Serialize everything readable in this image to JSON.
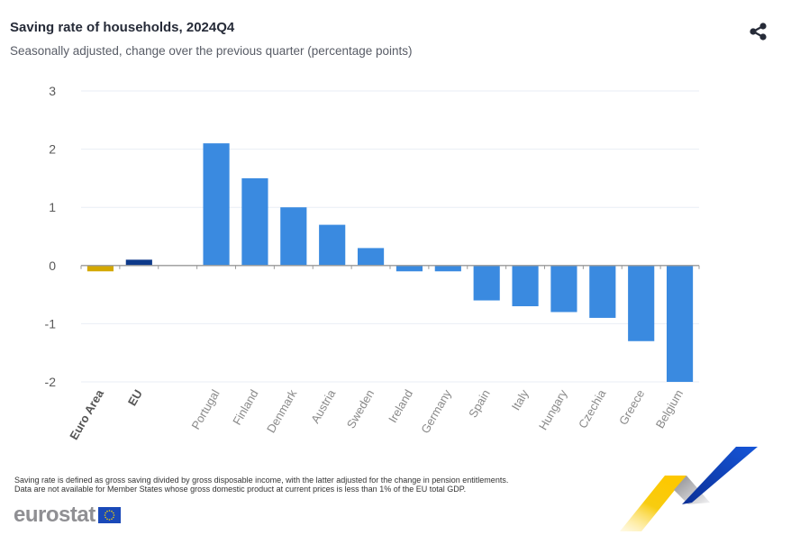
{
  "header": {
    "title": "Saving rate of households, 2024Q4",
    "subtitle": "Seasonally adjusted, change over the previous quarter (percentage points)",
    "share_icon": "share-icon"
  },
  "chart_data": {
    "type": "bar",
    "title": "Saving rate of households, 2024Q4",
    "subtitle": "Seasonally adjusted, change over the previous quarter (percentage points)",
    "xlabel": "",
    "ylabel": "",
    "ylim": [
      -2,
      3
    ],
    "yticks": [
      3,
      2,
      1,
      0,
      -1,
      -2
    ],
    "grid": true,
    "legend": "none",
    "categories": [
      "Euro Area",
      "EU",
      "",
      "Portugal",
      "Finland",
      "Denmark",
      "Austria",
      "Sweden",
      "Ireland",
      "Germany",
      "Spain",
      "Italy",
      "Hungary",
      "Czechia",
      "Greece",
      "Belgium"
    ],
    "values": [
      -0.1,
      0.1,
      null,
      2.1,
      1.5,
      1.0,
      0.7,
      0.3,
      -0.1,
      -0.1,
      -0.6,
      -0.7,
      -0.8,
      -0.9,
      -1.3,
      -2.0
    ],
    "bar_colors": [
      "#d4a800",
      "#0e3a8a",
      null,
      "#3a8ae0",
      "#3a8ae0",
      "#3a8ae0",
      "#3a8ae0",
      "#3a8ae0",
      "#3a8ae0",
      "#3a8ae0",
      "#3a8ae0",
      "#3a8ae0",
      "#3a8ae0",
      "#3a8ae0",
      "#3a8ae0",
      "#3a8ae0"
    ],
    "aggregate_categories": [
      "Euro Area",
      "EU"
    ]
  },
  "footer": {
    "note_line1": "Saving rate is defined as gross saving divided by gross disposable income, with the latter adjusted for the change in pension entitlements.",
    "note_line2": "Data are not available for Member States whose gross domestic product at current prices is less than 1% of the EU total GDP.",
    "logo_text": "eurostat"
  }
}
